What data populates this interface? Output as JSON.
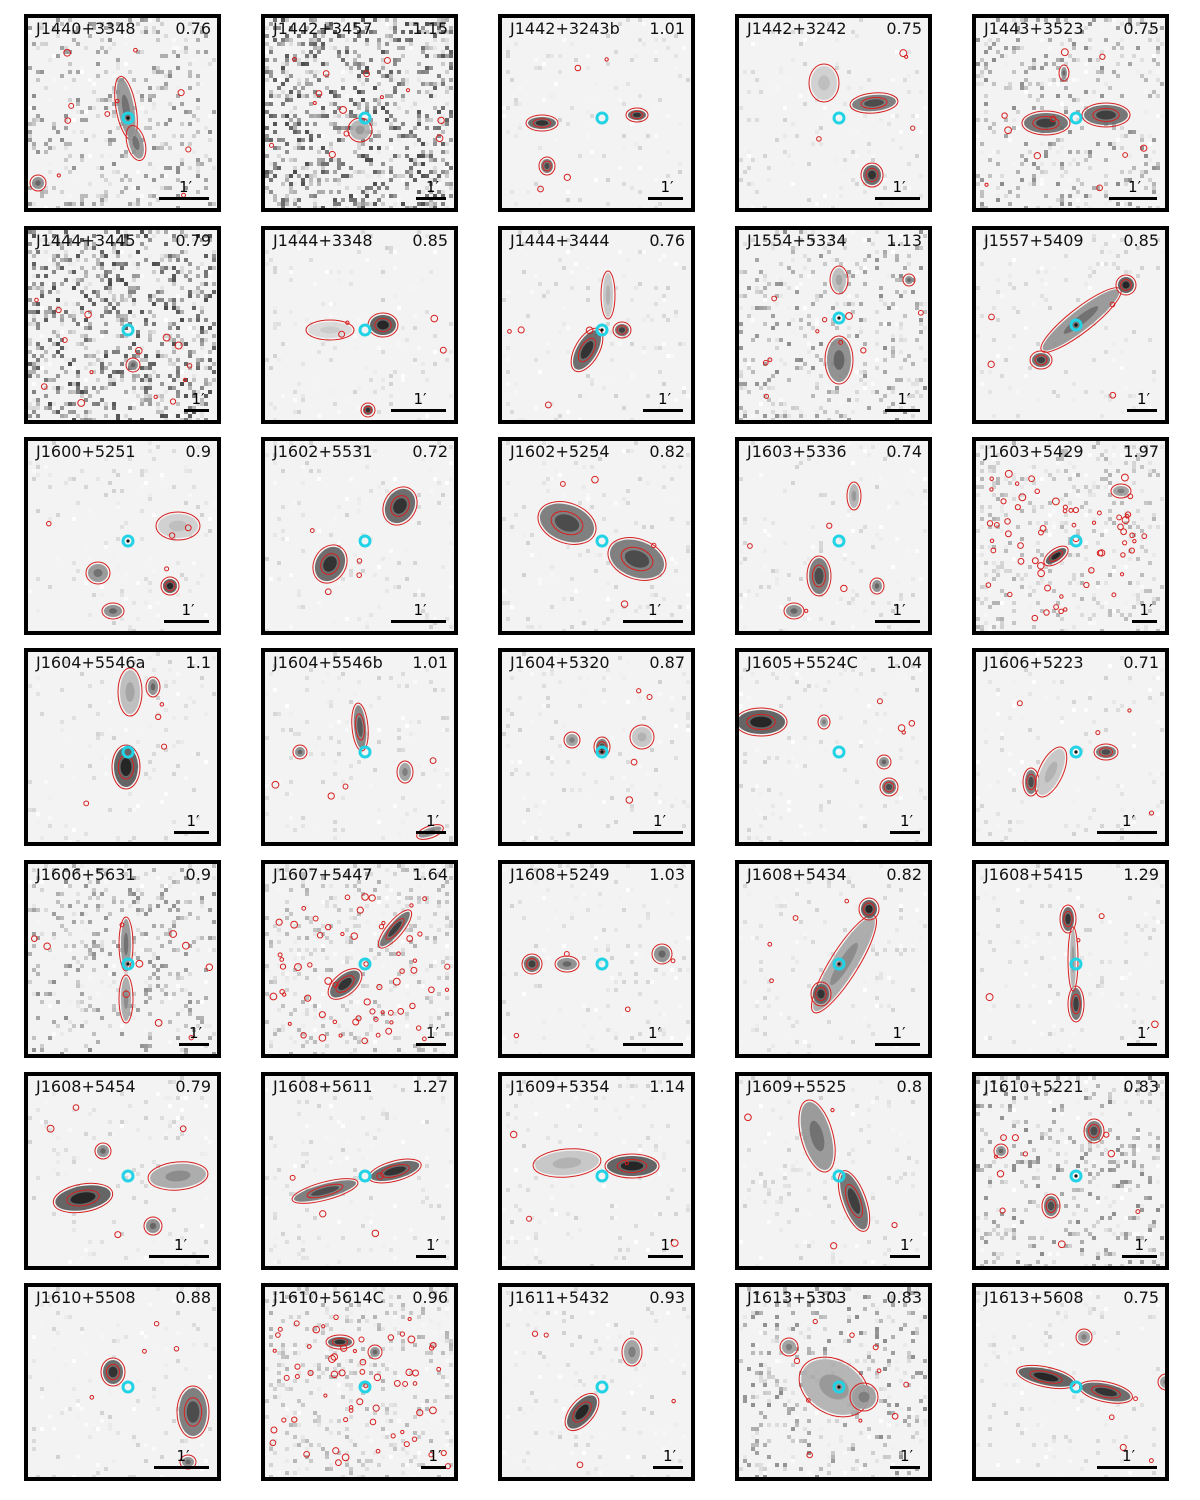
{
  "figure": {
    "scale_label": "1′",
    "colors": {
      "contour": "#d62020",
      "host_marker": "#22d3e6",
      "frame": "#000000",
      "background": "#f3f3f3"
    },
    "panels": [
      {
        "name": "J1440+3348",
        "z": "0.76"
      },
      {
        "name": "J1442+3457",
        "z": "1.15"
      },
      {
        "name": "J1442+3243b",
        "z": "1.01"
      },
      {
        "name": "J1442+3242",
        "z": "0.75"
      },
      {
        "name": "J1443+3523",
        "z": "0.75"
      },
      {
        "name": "J1444+3445",
        "z": "0.79"
      },
      {
        "name": "J1444+3348",
        "z": "0.85"
      },
      {
        "name": "J1444+3444",
        "z": "0.76"
      },
      {
        "name": "J1554+5334",
        "z": "1.13"
      },
      {
        "name": "J1557+5409",
        "z": "0.85"
      },
      {
        "name": "J1600+5251",
        "z": "0.9"
      },
      {
        "name": "J1602+5531",
        "z": "0.72"
      },
      {
        "name": "J1602+5254",
        "z": "0.82"
      },
      {
        "name": "J1603+5336",
        "z": "0.74"
      },
      {
        "name": "J1603+5429",
        "z": "1.97"
      },
      {
        "name": "J1604+5546a",
        "z": "1.1"
      },
      {
        "name": "J1604+5546b",
        "z": "1.01"
      },
      {
        "name": "J1604+5320",
        "z": "0.87"
      },
      {
        "name": "J1605+5524C",
        "z": "1.04"
      },
      {
        "name": "J1606+5223",
        "z": "0.71"
      },
      {
        "name": "J1606+5631",
        "z": "0.9"
      },
      {
        "name": "J1607+5447",
        "z": "1.64"
      },
      {
        "name": "J1608+5249",
        "z": "1.03"
      },
      {
        "name": "J1608+5434",
        "z": "0.82"
      },
      {
        "name": "J1608+5415",
        "z": "1.29"
      },
      {
        "name": "J1608+5454",
        "z": "0.79"
      },
      {
        "name": "J1608+5611",
        "z": "1.27"
      },
      {
        "name": "J1609+5354",
        "z": "1.14"
      },
      {
        "name": "J1609+5525",
        "z": "0.8"
      },
      {
        "name": "J1610+5221",
        "z": "0.83"
      },
      {
        "name": "J1610+5508",
        "z": "0.88"
      },
      {
        "name": "J1610+5614C",
        "z": "0.96"
      },
      {
        "name": "J1611+5432",
        "z": "0.93"
      },
      {
        "name": "J1613+5303",
        "z": "0.83"
      },
      {
        "name": "J1613+5608",
        "z": "0.75"
      }
    ]
  }
}
